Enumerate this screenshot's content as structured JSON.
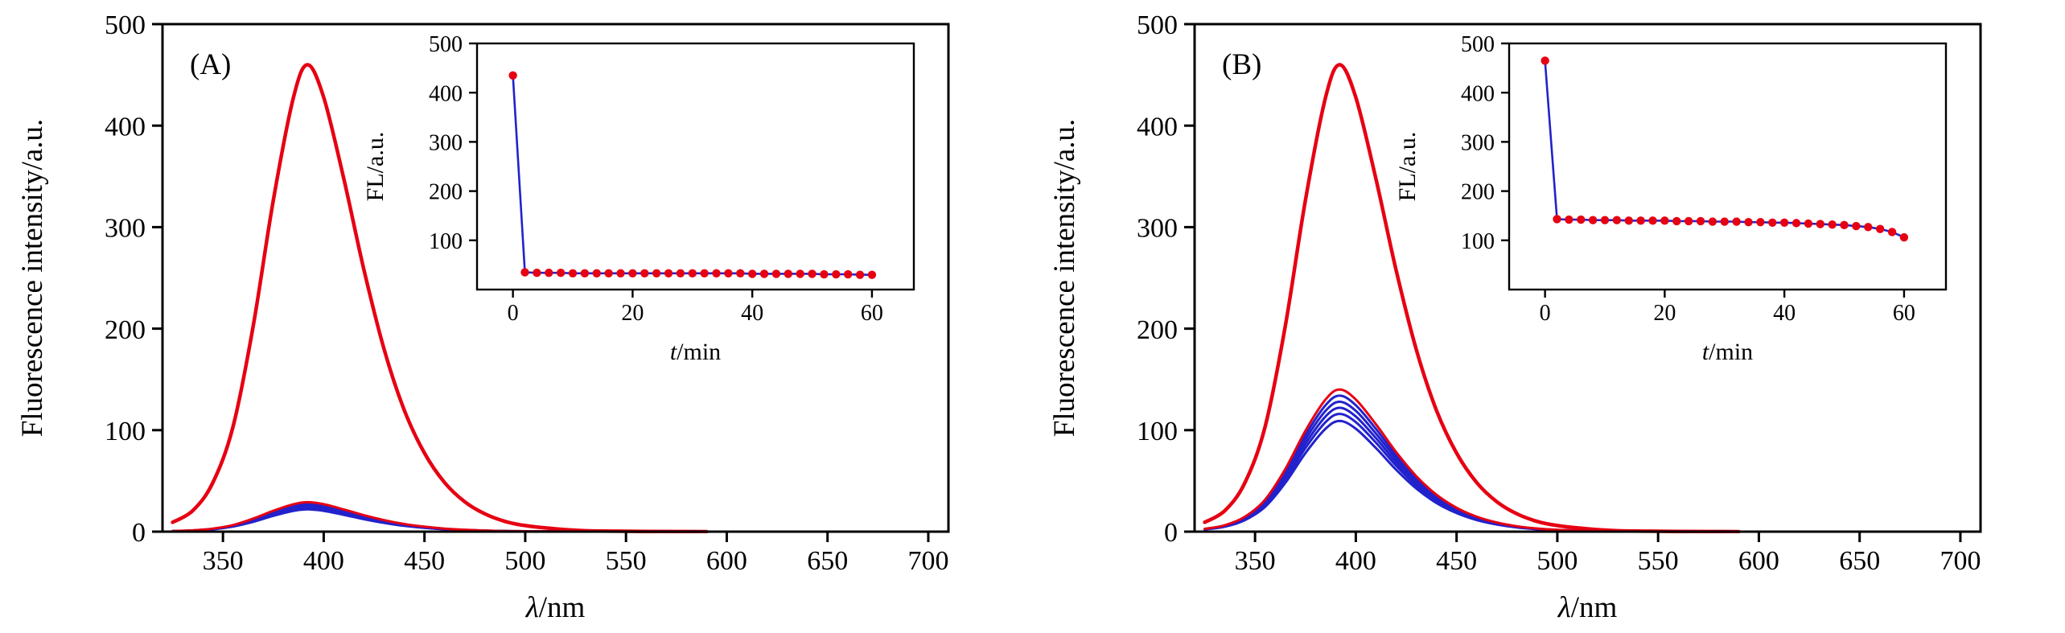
{
  "figure": {
    "panels": [
      {
        "label": "(A)"
      },
      {
        "label": "(B)"
      }
    ]
  },
  "colors": {
    "red": "#e60012",
    "blue": "#2222cc",
    "axis": "#000000",
    "background": "#ffffff"
  },
  "chart_data": [
    {
      "type": "line",
      "panel": "A",
      "position": "main",
      "panel_label": "(A)",
      "xlabel": "λ/nm",
      "ylabel": "Fluorescence intensity/a.u.",
      "xlim": [
        320,
        710
      ],
      "ylim": [
        0,
        500
      ],
      "xticks": [
        350,
        400,
        450,
        500,
        550,
        600,
        650,
        700
      ],
      "yticks": [
        0,
        100,
        200,
        300,
        400,
        500
      ],
      "grid": false,
      "legend": "none",
      "x": [
        325,
        335,
        345,
        355,
        365,
        375,
        385,
        392,
        400,
        410,
        420,
        430,
        440,
        450,
        460,
        470,
        480,
        490,
        500,
        515,
        530,
        545,
        560,
        575,
        590
      ],
      "series": [
        {
          "name": "cluster-blue-5",
          "color": "#2222cc",
          "width": 3,
          "values": [
            0.4,
            1,
            2.3,
            5,
            9.7,
            15.6,
            20.5,
            22,
            20.5,
            16.6,
            12.3,
            8.6,
            5.7,
            3.7,
            2.3,
            1.4,
            0.8,
            0.5,
            0.3,
            0.1,
            0,
            0,
            0,
            0,
            0
          ]
        },
        {
          "name": "cluster-blue-4",
          "color": "#2222cc",
          "width": 3,
          "values": [
            0.5,
            1.1,
            2.5,
            5.3,
            10.3,
            16.7,
            21.9,
            23.5,
            21.9,
            17.7,
            13.2,
            9.2,
            6.1,
            3.9,
            2.5,
            1.5,
            0.9,
            0.5,
            0.3,
            0.1,
            0,
            0,
            0,
            0,
            0
          ]
        },
        {
          "name": "cluster-blue-3",
          "color": "#2222cc",
          "width": 3,
          "values": [
            0.5,
            1.1,
            2.6,
            5.5,
            10.8,
            17.4,
            22.8,
            24.5,
            22.8,
            18.5,
            13.7,
            9.6,
            6.4,
            4.1,
            2.6,
            1.6,
            0.9,
            0.5,
            0.3,
            0.1,
            0,
            0,
            0,
            0,
            0
          ]
        },
        {
          "name": "cluster-blue-2",
          "color": "#2222cc",
          "width": 3,
          "values": [
            0.5,
            1.1,
            2.7,
            5.7,
            11.2,
            18.1,
            23.7,
            25.5,
            23.7,
            19.3,
            14.3,
            9.9,
            6.6,
            4.3,
            2.7,
            1.6,
            1,
            0.6,
            0.3,
            0.2,
            0.1,
            0,
            0,
            0,
            0
          ]
        },
        {
          "name": "cluster-blue-1",
          "color": "#2222cc",
          "width": 3,
          "values": [
            0.5,
            1.2,
            2.8,
            6.1,
            11.9,
            19.2,
            25.1,
            27,
            25.1,
            20.4,
            15.1,
            10.5,
            7,
            4.5,
            2.8,
            1.7,
            1,
            0.6,
            0.4,
            0.2,
            0.1,
            0,
            0,
            0,
            0
          ]
        },
        {
          "name": "cluster-red",
          "color": "#e60012",
          "width": 3,
          "values": [
            0.6,
            1.3,
            3,
            6.5,
            12.8,
            20.6,
            27,
            29,
            27,
            21.9,
            16.2,
            11.3,
            7.5,
            4.9,
            3,
            1.9,
            1.1,
            0.6,
            0.4,
            0.2,
            0.1,
            0,
            0,
            0,
            0
          ]
        },
        {
          "name": "red-high",
          "color": "#e60012",
          "width": 4.5,
          "values": [
            9.2,
            20.7,
            48.3,
            103.5,
            202.4,
            326.6,
            427.8,
            460,
            427.8,
            347.3,
            257.6,
            179.4,
            119.6,
            77.3,
            48.3,
            29.4,
            17.5,
            10.1,
            6,
            2.8,
            0.9,
            0.5,
            0.2,
            0.1,
            0
          ]
        }
      ]
    },
    {
      "type": "scatter",
      "panel": "A",
      "position": "inset",
      "xlabel": "t/min",
      "ylabel": "FL/a.u.",
      "xlim": [
        -6,
        67
      ],
      "ylim": [
        0,
        500
      ],
      "xticks": [
        0,
        20,
        40,
        60
      ],
      "yticks": [
        100,
        200,
        300,
        400,
        500
      ],
      "grid": false,
      "legend": "none",
      "x": [
        0,
        2,
        4,
        6,
        8,
        10,
        12,
        14,
        16,
        18,
        20,
        22,
        24,
        26,
        28,
        30,
        32,
        34,
        36,
        38,
        40,
        42,
        44,
        46,
        48,
        50,
        52,
        54,
        56,
        58,
        60
      ],
      "series": [
        {
          "name": "FL-vs-time",
          "line_color": "#2222cc",
          "marker_color": "#e60012",
          "width": 2.6,
          "marker_r": 5.2,
          "values": [
            435,
            35,
            34,
            34,
            34,
            33,
            33,
            33,
            33,
            33,
            33,
            33,
            33,
            33,
            33,
            33,
            33,
            33,
            33,
            33,
            32,
            32,
            32,
            32,
            32,
            32,
            31,
            31,
            31,
            30,
            30
          ]
        }
      ]
    },
    {
      "type": "line",
      "panel": "B",
      "position": "main",
      "panel_label": "(B)",
      "xlabel": "λ/nm",
      "ylabel": "Fluorescence intensity/a.u.",
      "xlim": [
        320,
        710
      ],
      "ylim": [
        0,
        500
      ],
      "xticks": [
        350,
        400,
        450,
        500,
        550,
        600,
        650,
        700
      ],
      "yticks": [
        0,
        100,
        200,
        300,
        400,
        500
      ],
      "grid": false,
      "legend": "none",
      "x": [
        325,
        335,
        345,
        355,
        365,
        375,
        385,
        392,
        400,
        410,
        420,
        430,
        440,
        450,
        460,
        470,
        480,
        490,
        500,
        515,
        530,
        545,
        560,
        575,
        590
      ],
      "series": [
        {
          "name": "cluster-blue-5",
          "color": "#2222cc",
          "width": 3,
          "values": [
            2.2,
            4.9,
            11.4,
            24.5,
            48,
            77.4,
            101.4,
            109,
            101.4,
            82.3,
            61,
            42.5,
            28.3,
            18.3,
            11.4,
            7,
            4.1,
            2.4,
            1.4,
            0.7,
            0.2,
            0.1,
            0,
            0,
            0
          ]
        },
        {
          "name": "cluster-blue-4",
          "color": "#2222cc",
          "width": 3,
          "values": [
            2.3,
            5.2,
            12.2,
            26.1,
            51,
            82.4,
            107.9,
            116,
            107.9,
            87.6,
            65,
            45.2,
            30.2,
            19.5,
            12.2,
            7.4,
            4.4,
            2.6,
            1.5,
            0.7,
            0.2,
            0.1,
            0,
            0,
            0
          ]
        },
        {
          "name": "cluster-blue-3",
          "color": "#2222cc",
          "width": 3,
          "values": [
            2.4,
            5.5,
            12.8,
            27.5,
            53.7,
            86.6,
            113.5,
            122,
            113.5,
            92.1,
            68.3,
            47.6,
            31.7,
            20.5,
            12.8,
            7.8,
            4.6,
            2.7,
            1.6,
            0.7,
            0.2,
            0.1,
            0,
            0,
            0
          ]
        },
        {
          "name": "cluster-blue-2",
          "color": "#2222cc",
          "width": 3,
          "values": [
            2.6,
            5.8,
            13.4,
            28.8,
            56.3,
            90.9,
            119,
            128,
            119,
            96.6,
            71.7,
            49.9,
            33.3,
            21.5,
            13.4,
            8.2,
            4.9,
            2.8,
            1.7,
            0.8,
            0.3,
            0.1,
            0,
            0,
            0
          ]
        },
        {
          "name": "cluster-blue-1",
          "color": "#2222cc",
          "width": 3,
          "values": [
            2.7,
            6,
            14.1,
            30.2,
            59,
            95.1,
            124.6,
            134,
            124.6,
            101.2,
            75,
            52.3,
            34.8,
            22.5,
            14.1,
            8.6,
            5.1,
            2.9,
            1.7,
            0.8,
            0.3,
            0.1,
            0.1,
            0,
            0
          ]
        },
        {
          "name": "cluster-red",
          "color": "#e60012",
          "width": 3,
          "values": [
            2.8,
            6.3,
            14.7,
            31.5,
            61.6,
            99.4,
            130.2,
            140,
            130.2,
            105.7,
            78.4,
            54.6,
            36.4,
            23.5,
            14.7,
            9,
            5.3,
            3.1,
            1.8,
            0.8,
            0.3,
            0.1,
            0.1,
            0,
            0
          ]
        },
        {
          "name": "red-high",
          "color": "#e60012",
          "width": 4.5,
          "values": [
            9.2,
            20.7,
            48.3,
            103.5,
            202.4,
            326.6,
            427.8,
            460,
            427.8,
            347.3,
            257.6,
            179.4,
            119.6,
            77.3,
            48.3,
            29.4,
            17.5,
            10.1,
            6,
            2.8,
            0.9,
            0.5,
            0.2,
            0.1,
            0
          ]
        }
      ]
    },
    {
      "type": "scatter",
      "panel": "B",
      "position": "inset",
      "xlabel": "t/min",
      "ylabel": "FL/a.u.",
      "xlim": [
        -6,
        67
      ],
      "ylim": [
        0,
        500
      ],
      "xticks": [
        0,
        20,
        40,
        60
      ],
      "yticks": [
        100,
        200,
        300,
        400,
        500
      ],
      "grid": false,
      "legend": "none",
      "x": [
        0,
        2,
        4,
        6,
        8,
        10,
        12,
        14,
        16,
        18,
        20,
        22,
        24,
        26,
        28,
        30,
        32,
        34,
        36,
        38,
        40,
        42,
        44,
        46,
        48,
        50,
        52,
        54,
        56,
        58,
        60
      ],
      "series": [
        {
          "name": "FL-vs-time",
          "line_color": "#2222cc",
          "marker_color": "#e60012",
          "width": 2.6,
          "marker_r": 5.2,
          "values": [
            465,
            143,
            142,
            142,
            141,
            141,
            141,
            140,
            140,
            140,
            140,
            139,
            139,
            139,
            138,
            138,
            138,
            137,
            137,
            136,
            136,
            135,
            134,
            133,
            132,
            131,
            129,
            127,
            123,
            117,
            106
          ]
        }
      ]
    }
  ]
}
